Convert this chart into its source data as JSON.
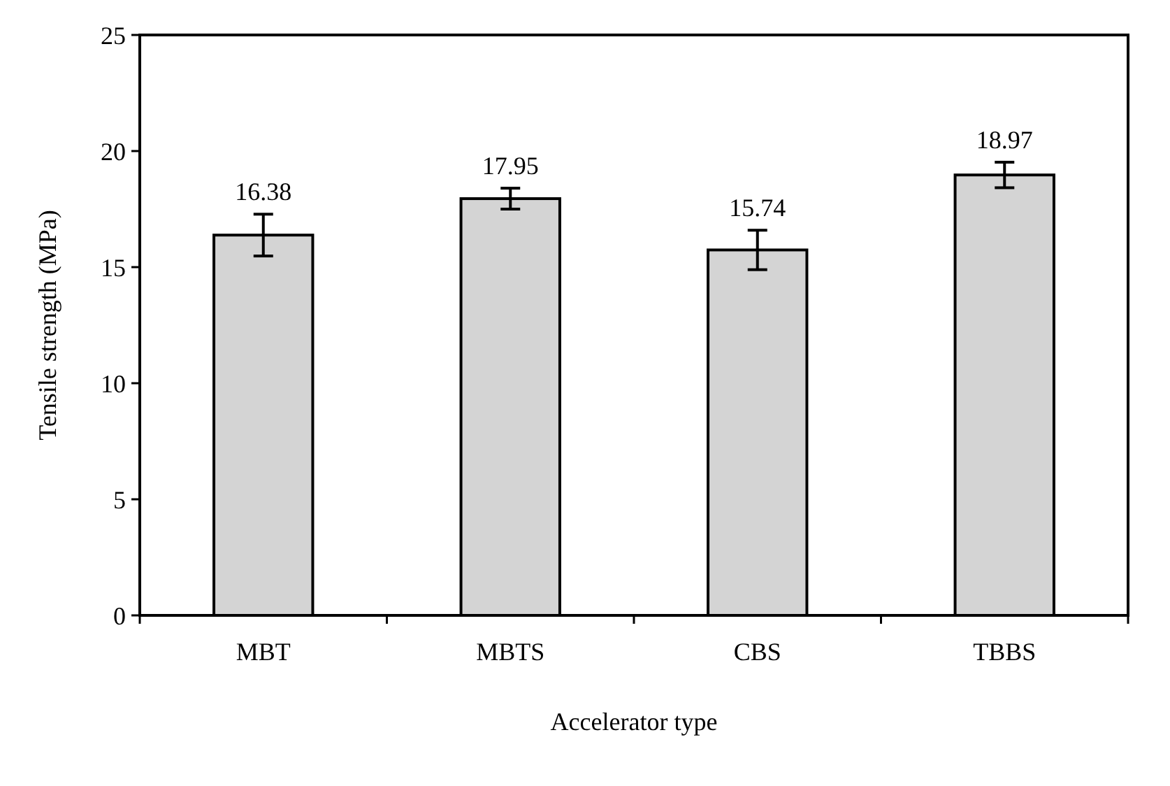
{
  "chart_data": {
    "type": "bar",
    "xlabel": "Accelerator type",
    "ylabel": "Tensile strength (MPa)",
    "categories": [
      "MBT",
      "MBTS",
      "CBS",
      "TBBS"
    ],
    "values": [
      16.38,
      17.95,
      15.74,
      18.97
    ],
    "errors": [
      0.9,
      0.45,
      0.85,
      0.55
    ],
    "color": "#d4d4d4",
    "data_labels": true,
    "ylim": [
      0,
      25
    ],
    "yticks": [
      0,
      5,
      10,
      15,
      20,
      25
    ],
    "grid": false
  }
}
